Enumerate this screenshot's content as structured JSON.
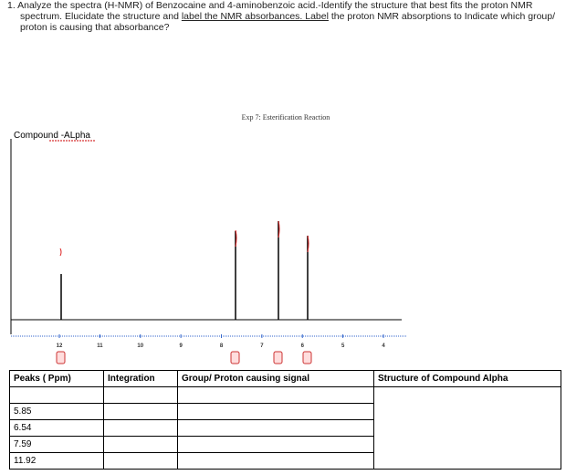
{
  "question": {
    "number": "1.",
    "text_before": "Analyze the spectra (H-NMR) of Benzocaine and 4-aminobenzoic acid.-Identify the structure that best fits the proton NMR spectrum. Elucidate the structure and",
    "underlined": "label the NMR absorbances. Label",
    "text_after": "the proton NMR absorptions to Indicate which group/ proton is causing that absorbance?"
  },
  "spectrum": {
    "title": "Exp 7: Esterification Reaction",
    "compound_label": "Compound -ALpha",
    "xticks": [
      12,
      11,
      10,
      9,
      8,
      7,
      6,
      5,
      4
    ]
  },
  "table": {
    "headers": [
      "Peaks ( Ppm)",
      "Integration",
      "Group/ Proton causing signal",
      "Structure of Compound Alpha"
    ],
    "peaks": [
      5.85,
      6.54,
      7.59,
      11.92
    ]
  }
}
